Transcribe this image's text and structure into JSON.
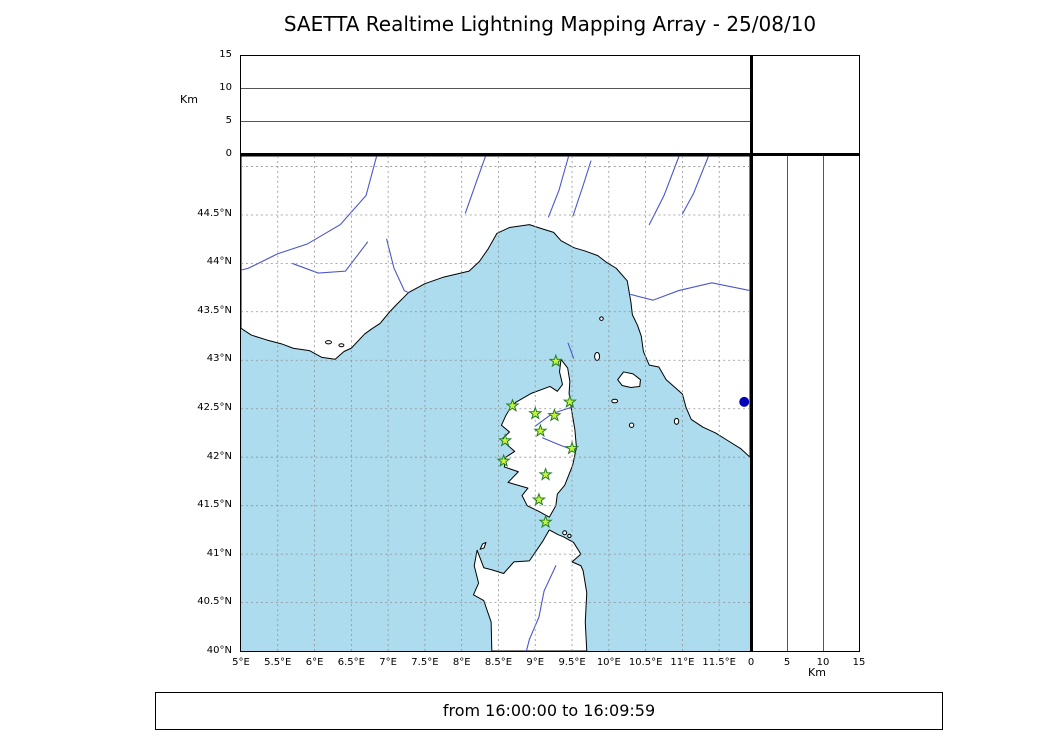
{
  "title": "SAETTA Realtime Lightning Mapping Array - 25/08/10",
  "caption": "from 16:00:00 to 16:09:59",
  "axes": {
    "alt_label_left": "Km",
    "alt_label_bottom": "Km",
    "alt_ticks_top": [
      "15",
      "10",
      "5",
      "0"
    ],
    "alt_ticks_right": [
      "0",
      "5",
      "10",
      "15"
    ],
    "lat_ticks": [
      "44.5°N",
      "44°N",
      "43.5°N",
      "43°N",
      "42.5°N",
      "42°N",
      "41.5°N",
      "41°N",
      "40.5°N",
      "40°N"
    ],
    "lon_ticks": [
      "5°E",
      "5.5°E",
      "6°E",
      "6.5°E",
      "7°E",
      "7.5°E",
      "8°E",
      "8.5°E",
      "9°E",
      "9.5°E",
      "10°E",
      "10.5°E",
      "11°E",
      "11.5°E"
    ]
  },
  "colors": {
    "sea": "#addcee",
    "land": "#ffffff",
    "coast": "#000000",
    "river": "#4a55cc",
    "grid": "#909090",
    "stationFill": "#c8f440",
    "stationStroke": "#208020",
    "event": "#0000bb"
  },
  "chart_data": {
    "type": "scatter",
    "title": "SAETTA Realtime Lightning Mapping Array - 25/08/10",
    "subtitle": "from 16:00:00 to 16:09:59",
    "projection": "lon-lat map with altitude side panels",
    "lon_range": [
      5.0,
      11.92
    ],
    "lat_range": [
      40.0,
      45.09
    ],
    "alt_range_km": [
      0,
      15
    ],
    "lon_tick_values": [
      5,
      5.5,
      6,
      6.5,
      7,
      7.5,
      8,
      8.5,
      9,
      9.5,
      10,
      10.5,
      11,
      11.5
    ],
    "lat_tick_values": [
      44.5,
      44,
      43.5,
      43,
      42.5,
      42,
      41.5,
      41,
      40.5,
      40
    ],
    "alt_tick_values_top": [
      15,
      10,
      5,
      0
    ],
    "alt_tick_values_right": [
      0,
      5,
      10,
      15
    ],
    "grid": "dashed 0.5 degree graticule",
    "stations_lonlat": [
      [
        9.28,
        42.99
      ],
      [
        8.69,
        42.53
      ],
      [
        9.0,
        42.45
      ],
      [
        9.26,
        42.43
      ],
      [
        9.47,
        42.57
      ],
      [
        9.07,
        42.27
      ],
      [
        8.59,
        42.17
      ],
      [
        9.5,
        42.09
      ],
      [
        8.57,
        41.96
      ],
      [
        9.14,
        41.82
      ],
      [
        9.05,
        41.56
      ],
      [
        9.14,
        41.33
      ]
    ],
    "events_lonlat": [
      [
        11.84,
        42.57
      ]
    ]
  }
}
